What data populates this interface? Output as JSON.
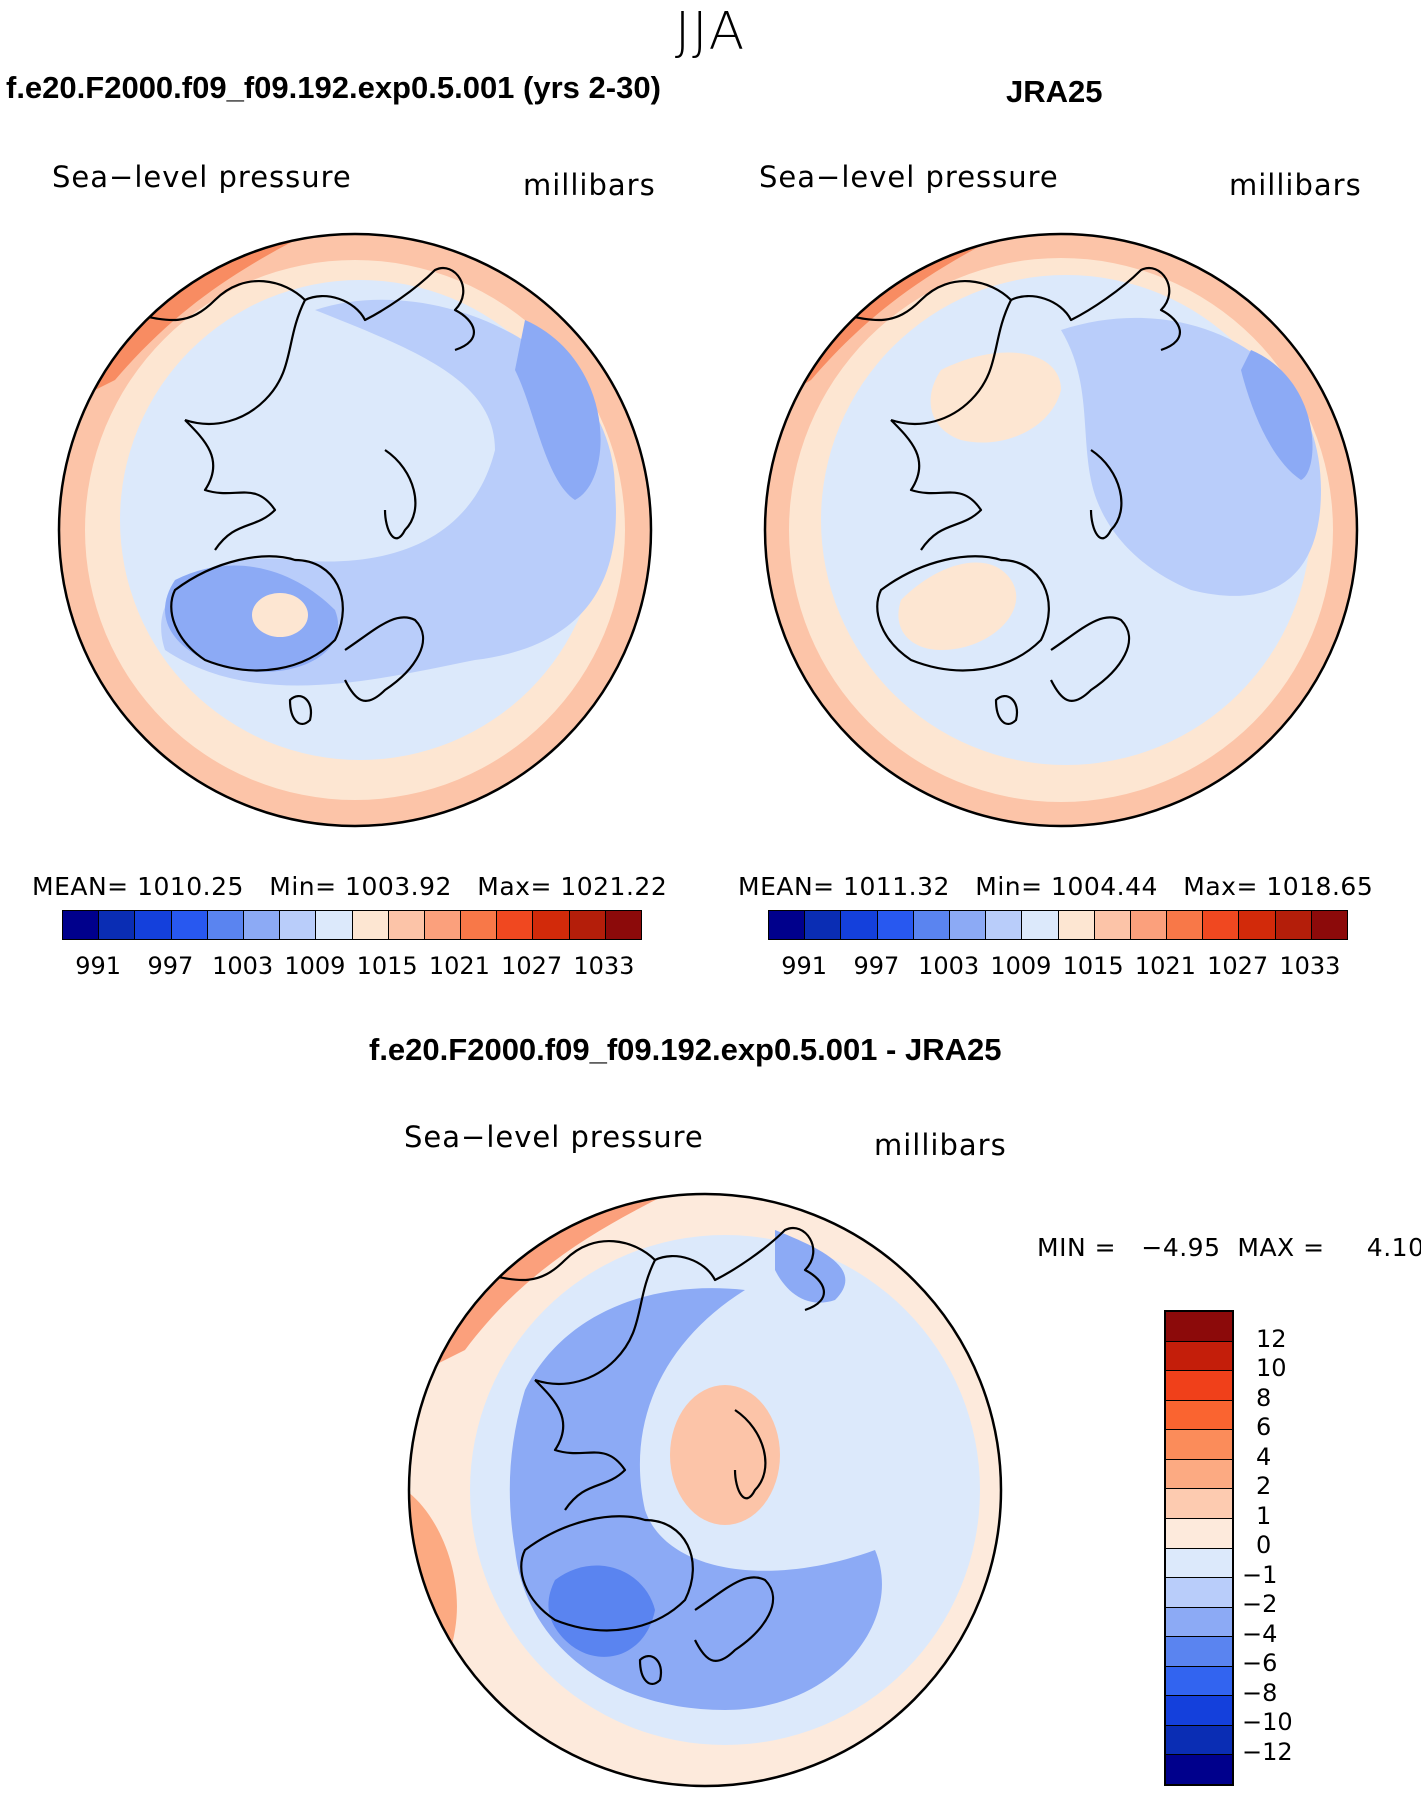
{
  "season": "JJA",
  "panels": {
    "model": {
      "title": "f.e20.F2000.f09_f09.192.exp0.5.001 (yrs 2-30)",
      "variable": "Sea−level pressure",
      "units": "millibars",
      "stats": "MEAN= 1010.25   Min= 1003.92   Max= 1021.22"
    },
    "obs": {
      "title": "JRA25",
      "variable": "Sea−level pressure",
      "units": "millibars",
      "stats": "MEAN= 1011.32   Min= 1004.44   Max= 1018.65"
    },
    "diff": {
      "title": "f.e20.F2000.f09_f09.192.exp0.5.001 - JRA25",
      "variable": "Sea−level pressure",
      "units": "millibars",
      "minmax": "MIN =   −4.95  MAX =     4.10"
    }
  },
  "colorbar_abs": {
    "colors": [
      "#00008c",
      "#0a2db4",
      "#1440dc",
      "#2858f0",
      "#5a84f0",
      "#8caaf5",
      "#b9cdfa",
      "#dce9fb",
      "#fde6d2",
      "#fcc4a8",
      "#fba07c",
      "#f87848",
      "#f04820",
      "#d22a0a",
      "#b41e0a",
      "#8c0a0a"
    ],
    "labels": [
      "991",
      "997",
      "1003",
      "1009",
      "1015",
      "1021",
      "1027",
      "1033"
    ]
  },
  "colorbar_diff": {
    "colors": [
      "#8c0a0a",
      "#c41e0a",
      "#f0401a",
      "#fa6430",
      "#fb8c5a",
      "#fcaa82",
      "#fdcbb0",
      "#fdeadc",
      "#dce9fb",
      "#b9cdfa",
      "#8caaf5",
      "#5a84f0",
      "#3264f0",
      "#1440dc",
      "#0a2db4",
      "#00008c"
    ],
    "labels": [
      "12",
      "10",
      "8",
      "6",
      "4",
      "2",
      "1",
      "0",
      "−1",
      "−2",
      "−4",
      "−6",
      "−8",
      "−10",
      "−12"
    ]
  }
}
